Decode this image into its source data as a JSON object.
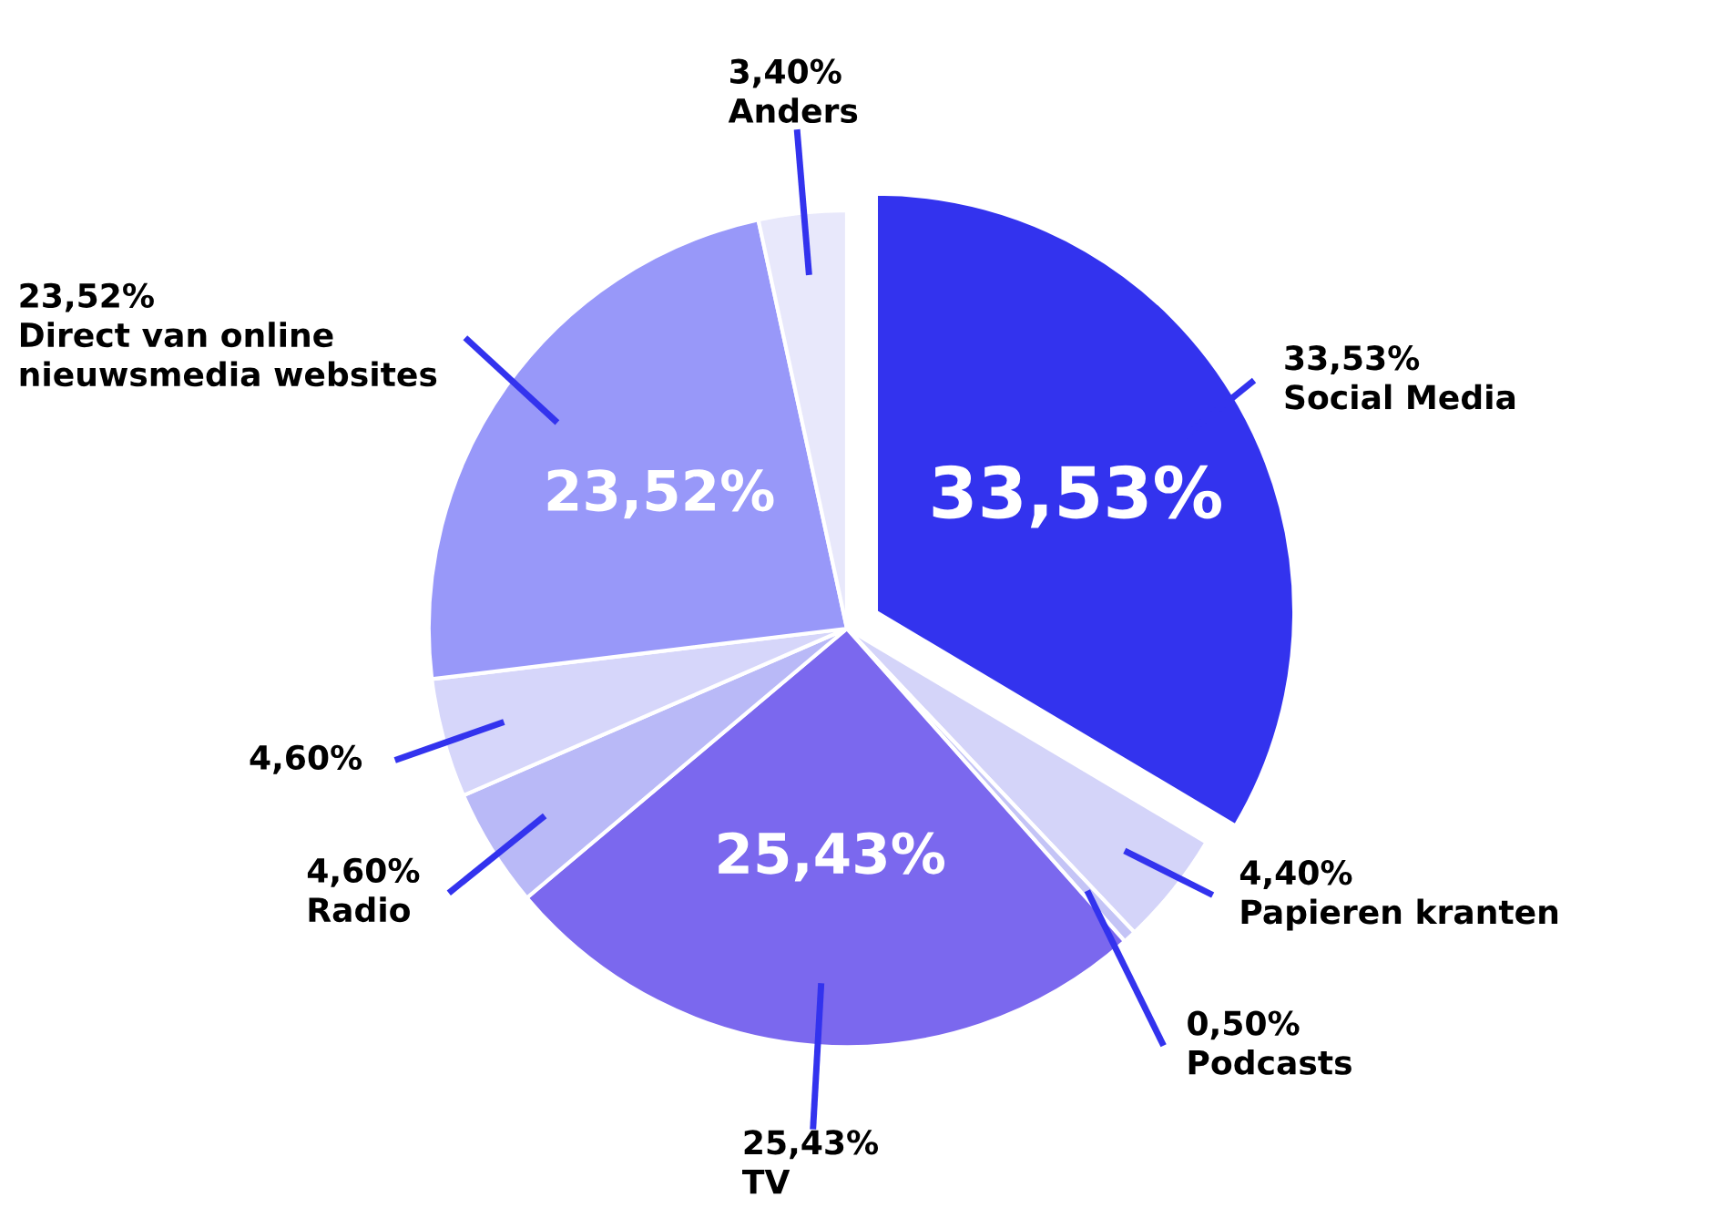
{
  "chart_data": {
    "type": "pie",
    "categories": [
      "Social Media",
      "Papieren kranten",
      "Podcasts",
      "TV",
      "Radio",
      null,
      "Direct van online nieuwsmedia websites",
      "Anders"
    ],
    "values": [
      33.53,
      4.4,
      0.5,
      25.43,
      4.6,
      4.6,
      23.52,
      3.4
    ],
    "value_labels": [
      "33,53%",
      "4,40%",
      "0,50%",
      "25,43%",
      "4,60%",
      "4,60%",
      "23,52%",
      "3,40%"
    ],
    "colors": [
      "#3333ee",
      "#d4d4f9",
      "#c4c4f6",
      "#7b68ee",
      "#b9b9f7",
      "#d6d6fa",
      "#9898f9",
      "#e8e8fb"
    ],
    "legend": false
  }
}
